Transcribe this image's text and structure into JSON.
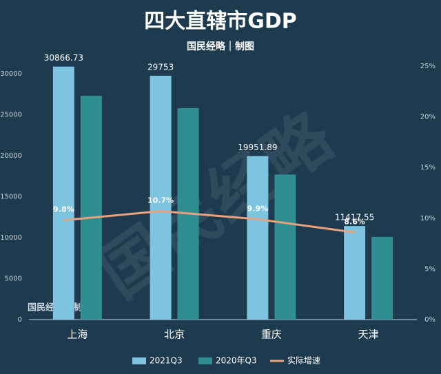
{
  "chart_data": {
    "type": "bar",
    "title": "四大直辖市GDP",
    "subtitle": "国民经略｜制图",
    "watermark": "国民经略",
    "source_mark": "国民经略 | 制图",
    "categories": [
      "上海",
      "北京",
      "重庆",
      "天津"
    ],
    "series": [
      {
        "name": "2021Q3",
        "color": "#7cc4df",
        "values": [
          30866.73,
          29753,
          19951.89,
          11417.55
        ]
      },
      {
        "name": "2020年Q3",
        "color": "#2f8e92",
        "values": [
          27300,
          25800,
          17700,
          10100
        ]
      },
      {
        "name": "实际增速",
        "type": "line",
        "axis": "y2",
        "color": "#e9a27c",
        "values": [
          9.8,
          10.7,
          9.9,
          8.6
        ],
        "value_labels": [
          "9.8%",
          "10.7%",
          "9.9%",
          "8.6%"
        ]
      }
    ],
    "ylim": [
      0,
      30924
    ],
    "yticks": [
      0,
      5000,
      10000,
      15000,
      20000,
      25000,
      30000
    ],
    "y2lim": [
      0,
      25
    ],
    "y2ticks": [
      {
        "value": 0,
        "label": "0%"
      },
      {
        "value": 5,
        "label": "5%"
      },
      {
        "value": 10,
        "label": "10%"
      },
      {
        "value": 15,
        "label": "15%"
      },
      {
        "value": 20,
        "label": "20%"
      },
      {
        "value": 25,
        "label": "25%"
      }
    ],
    "bar_value_labels_series": 0,
    "legend": "bottom"
  }
}
